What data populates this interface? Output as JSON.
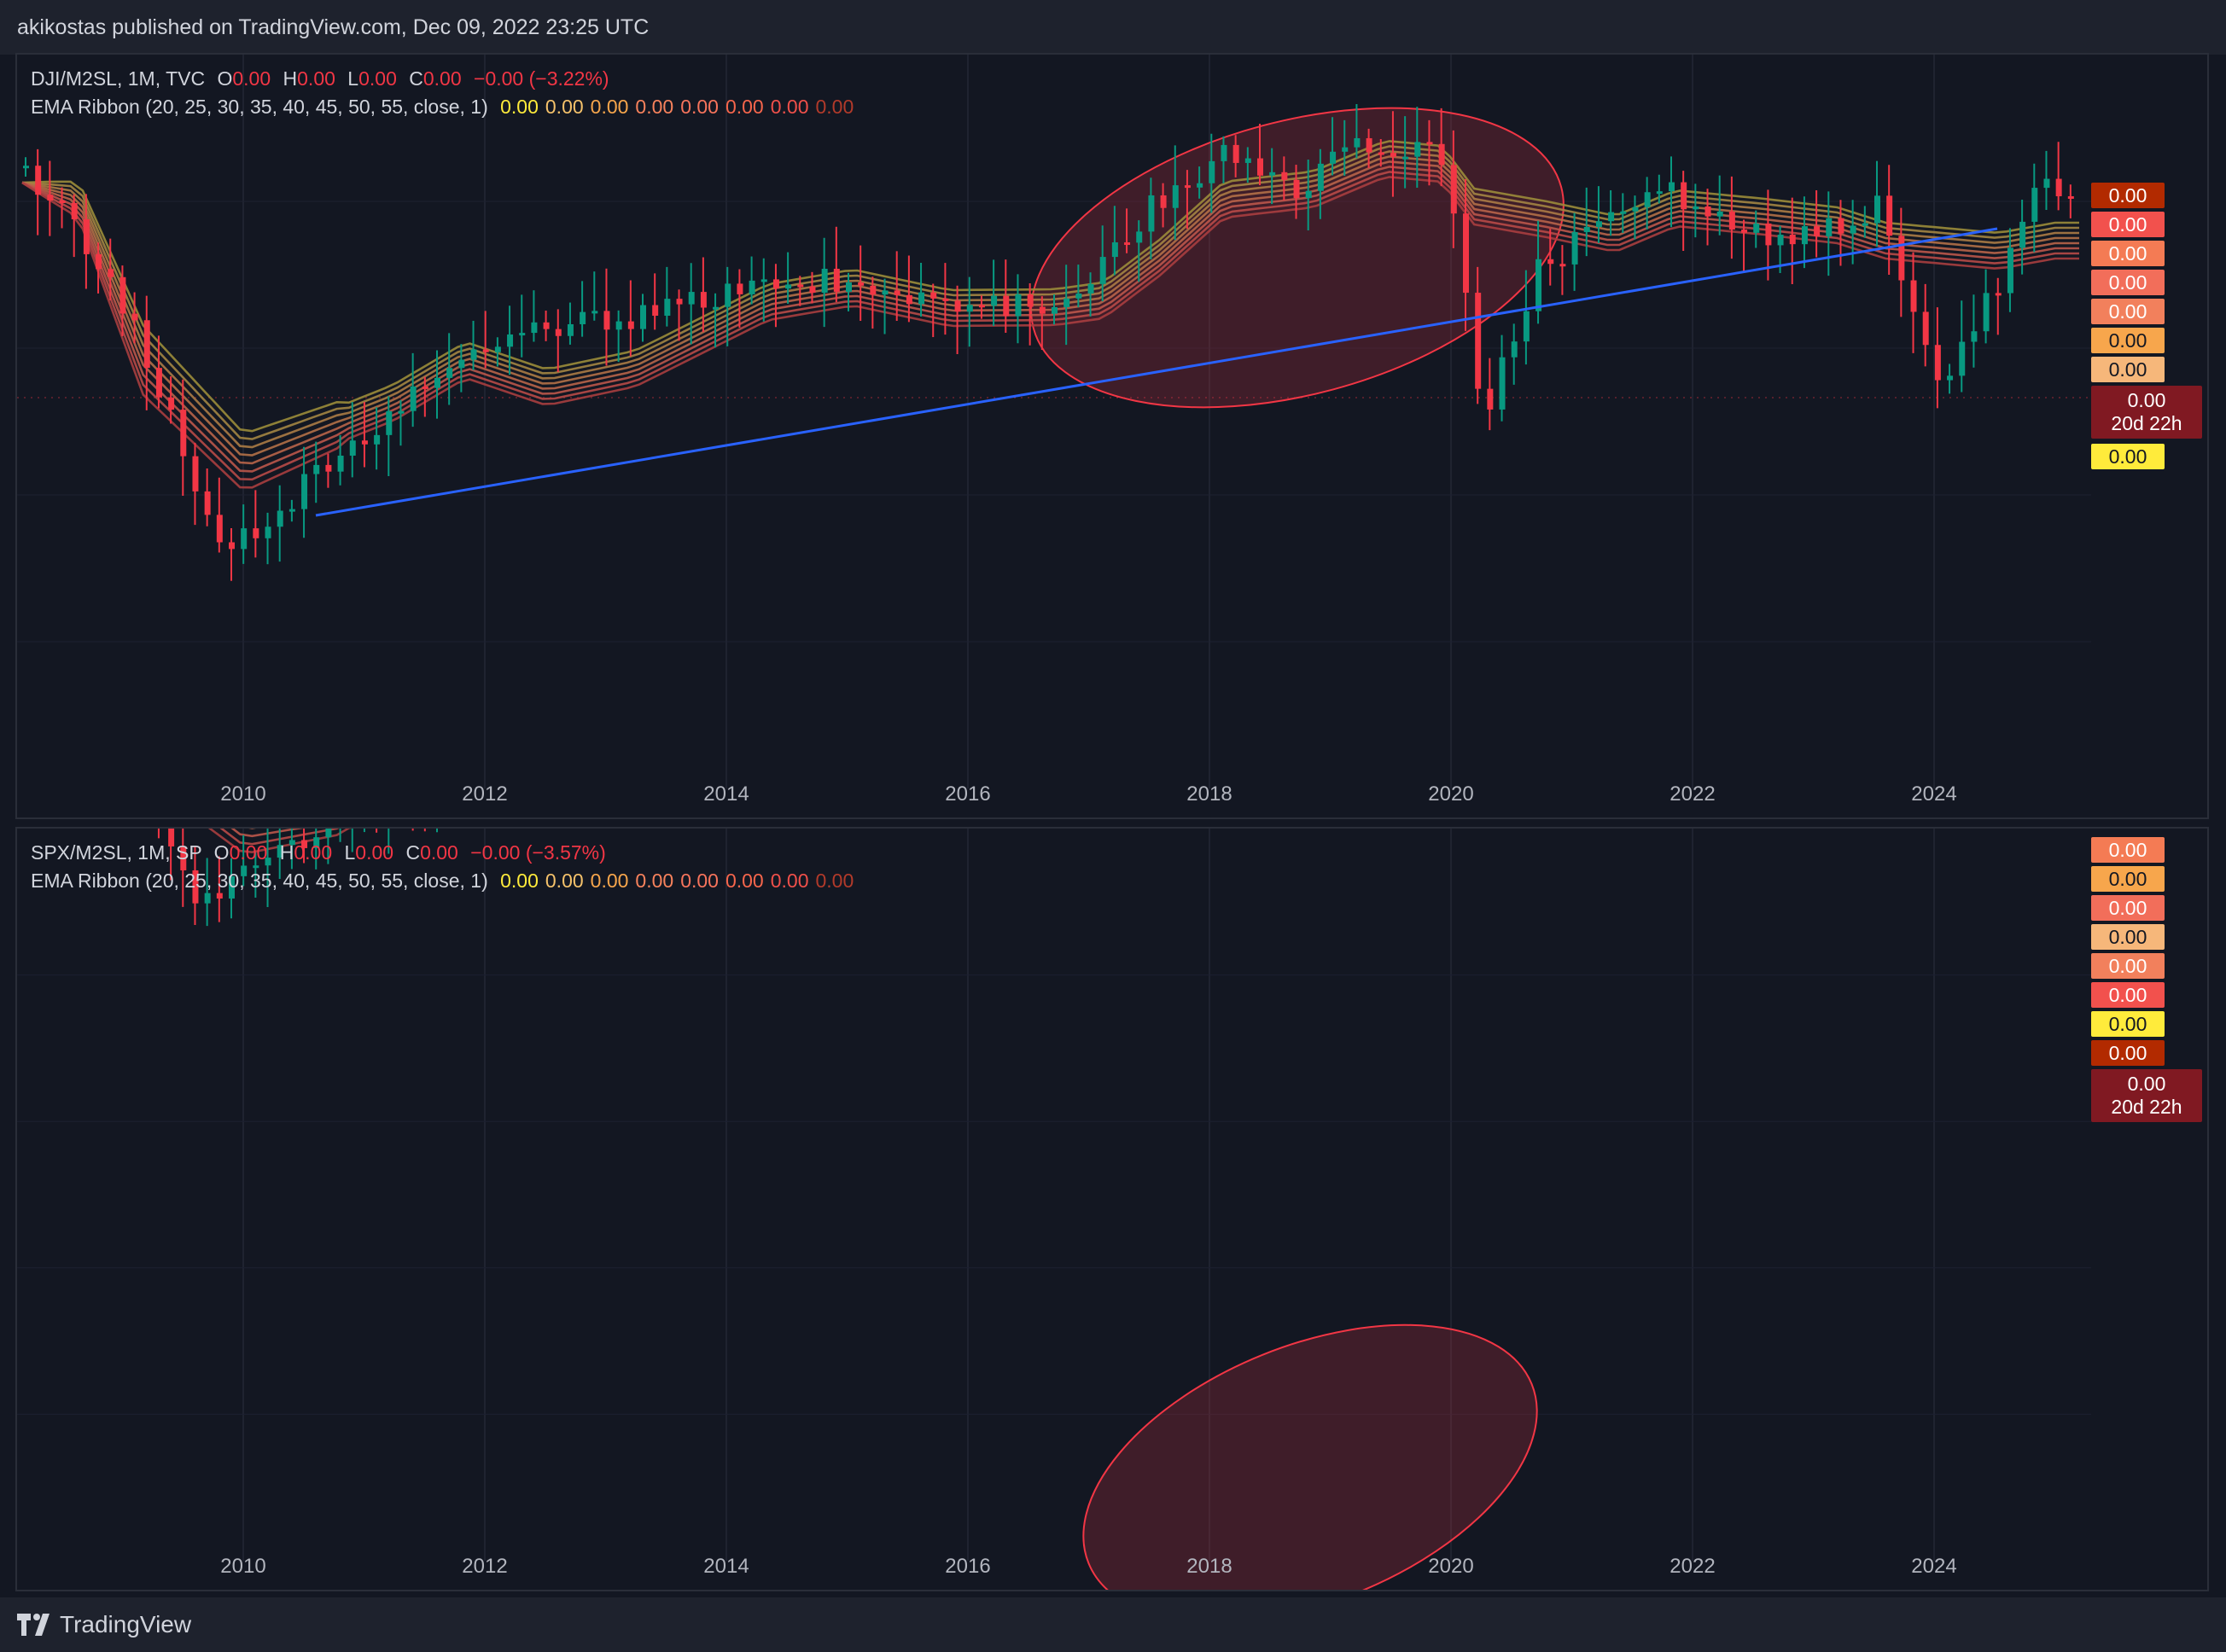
{
  "header": {
    "text": "akikostas published on TradingView.com, Dec 09, 2022 23:25 UTC"
  },
  "footer": {
    "brand": "TradingView",
    "logo_icon": "tradingview-logo-icon"
  },
  "colors": {
    "background": "#131722",
    "up_candle": "#089981",
    "down_candle": "#f23645",
    "trendline": "#2962ff",
    "highlight_ellipse": "#f23645",
    "ribbon": [
      "#9b8c3a",
      "#a38543",
      "#ab7b45",
      "#b37047",
      "#b86449",
      "#bb574a",
      "#b84a47",
      "#a83e3f"
    ]
  },
  "panes": [
    {
      "id": "dji",
      "symbol": "DJI/M2SL, 1M, TVC",
      "ohlc": {
        "o_label": "O",
        "o": "0.00",
        "h_label": "H",
        "h": "0.00",
        "l_label": "L",
        "l": "0.00",
        "c_label": "C",
        "c": "0.00",
        "change": "−0.00 (−3.22%)"
      },
      "indicator": {
        "name": "EMA Ribbon (20, 25, 30, 35, 40, 45, 50, 55, close, 1)",
        "values": [
          {
            "value": "0.00",
            "color": "#ffeb3b"
          },
          {
            "value": "0.00",
            "color": "#f5c26b"
          },
          {
            "value": "0.00",
            "color": "#f7a64c"
          },
          {
            "value": "0.00",
            "color": "#f7825c"
          },
          {
            "value": "0.00",
            "color": "#f7745c"
          },
          {
            "value": "0.00",
            "color": "#f7664c"
          },
          {
            "value": "0.00",
            "color": "#f0504a"
          },
          {
            "value": "0.00",
            "color": "#b23a2a"
          }
        ]
      },
      "x_axis": [
        "2010",
        "2012",
        "2014",
        "2016",
        "2018",
        "2020",
        "2022",
        "2024"
      ],
      "price_tags": [
        {
          "value": "0.00",
          "sub": "",
          "color": "#b22a00"
        },
        {
          "value": "0.00",
          "sub": "",
          "color": "#f2514d"
        },
        {
          "value": "0.00",
          "sub": "",
          "color": "#f47b54"
        },
        {
          "value": "0.00",
          "sub": "",
          "color": "#f26e5a"
        },
        {
          "value": "0.00",
          "sub": "",
          "color": "#f2805c"
        },
        {
          "value": "0.00",
          "sub": "",
          "color": "#f7a64c"
        },
        {
          "value": "0.00",
          "sub": "",
          "color": "#f6b77a"
        },
        {
          "value": "0.00",
          "sub": "20d 22h",
          "color": "#801922"
        },
        {
          "value": "0.00",
          "sub": "",
          "color": "#ffeb3b"
        }
      ]
    },
    {
      "id": "spx",
      "symbol": "SPX/M2SL, 1M, SP",
      "ohlc": {
        "o_label": "O",
        "o": "0.00",
        "h_label": "H",
        "h": "0.00",
        "l_label": "L",
        "l": "0.00",
        "c_label": "C",
        "c": "0.00",
        "change": "−0.00 (−3.57%)"
      },
      "indicator": {
        "name": "EMA Ribbon (20, 25, 30, 35, 40, 45, 50, 55, close, 1)",
        "values": [
          {
            "value": "0.00",
            "color": "#ffeb3b"
          },
          {
            "value": "0.00",
            "color": "#f5c26b"
          },
          {
            "value": "0.00",
            "color": "#f7a64c"
          },
          {
            "value": "0.00",
            "color": "#f7825c"
          },
          {
            "value": "0.00",
            "color": "#f7745c"
          },
          {
            "value": "0.00",
            "color": "#f7664c"
          },
          {
            "value": "0.00",
            "color": "#f0504a"
          },
          {
            "value": "0.00",
            "color": "#b23a2a"
          }
        ]
      },
      "x_axis": [
        "2010",
        "2012",
        "2014",
        "2016",
        "2018",
        "2020",
        "2022",
        "2024"
      ],
      "price_tags": [
        {
          "value": "0.00",
          "sub": "",
          "color": "#f47b54"
        },
        {
          "value": "0.00",
          "sub": "",
          "color": "#f7a64c"
        },
        {
          "value": "0.00",
          "sub": "",
          "color": "#f26e5a"
        },
        {
          "value": "0.00",
          "sub": "",
          "color": "#f6b77a"
        },
        {
          "value": "0.00",
          "sub": "",
          "color": "#f2805c"
        },
        {
          "value": "0.00",
          "sub": "",
          "color": "#f2514d"
        },
        {
          "value": "0.00",
          "sub": "",
          "color": "#ffeb3b"
        },
        {
          "value": "0.00",
          "sub": "",
          "color": "#b22a00"
        },
        {
          "value": "0.00",
          "sub": "20d 22h",
          "color": "#801922"
        }
      ]
    }
  ]
}
